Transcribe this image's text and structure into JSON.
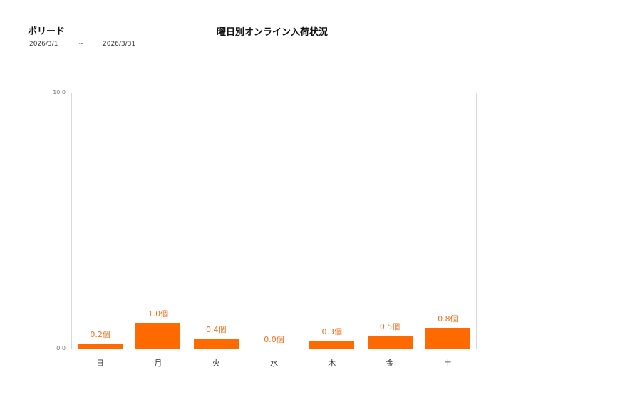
{
  "header": {
    "store_name": "ポリード",
    "date_from": "2026/3/1",
    "date_sep": "~",
    "date_to": "2026/3/31"
  },
  "chart_data": {
    "type": "bar",
    "title": "曜日別オンライン入荷状況",
    "xlabel": "",
    "ylabel": "",
    "ylim": [
      0,
      10
    ],
    "yticks": [
      "0.0",
      "10.0"
    ],
    "grid": false,
    "legend": null,
    "unit": "個",
    "categories": [
      "日",
      "月",
      "火",
      "水",
      "木",
      "金",
      "土"
    ],
    "values": [
      0.2,
      1.0,
      0.4,
      0.0,
      0.3,
      0.5,
      0.8
    ],
    "labels": [
      "0.2個",
      "1.0個",
      "0.4個",
      "0.0個",
      "0.3個",
      "0.5個",
      "0.8個"
    ],
    "bar_color": "#ff6a00",
    "label_color": "#f07020"
  }
}
